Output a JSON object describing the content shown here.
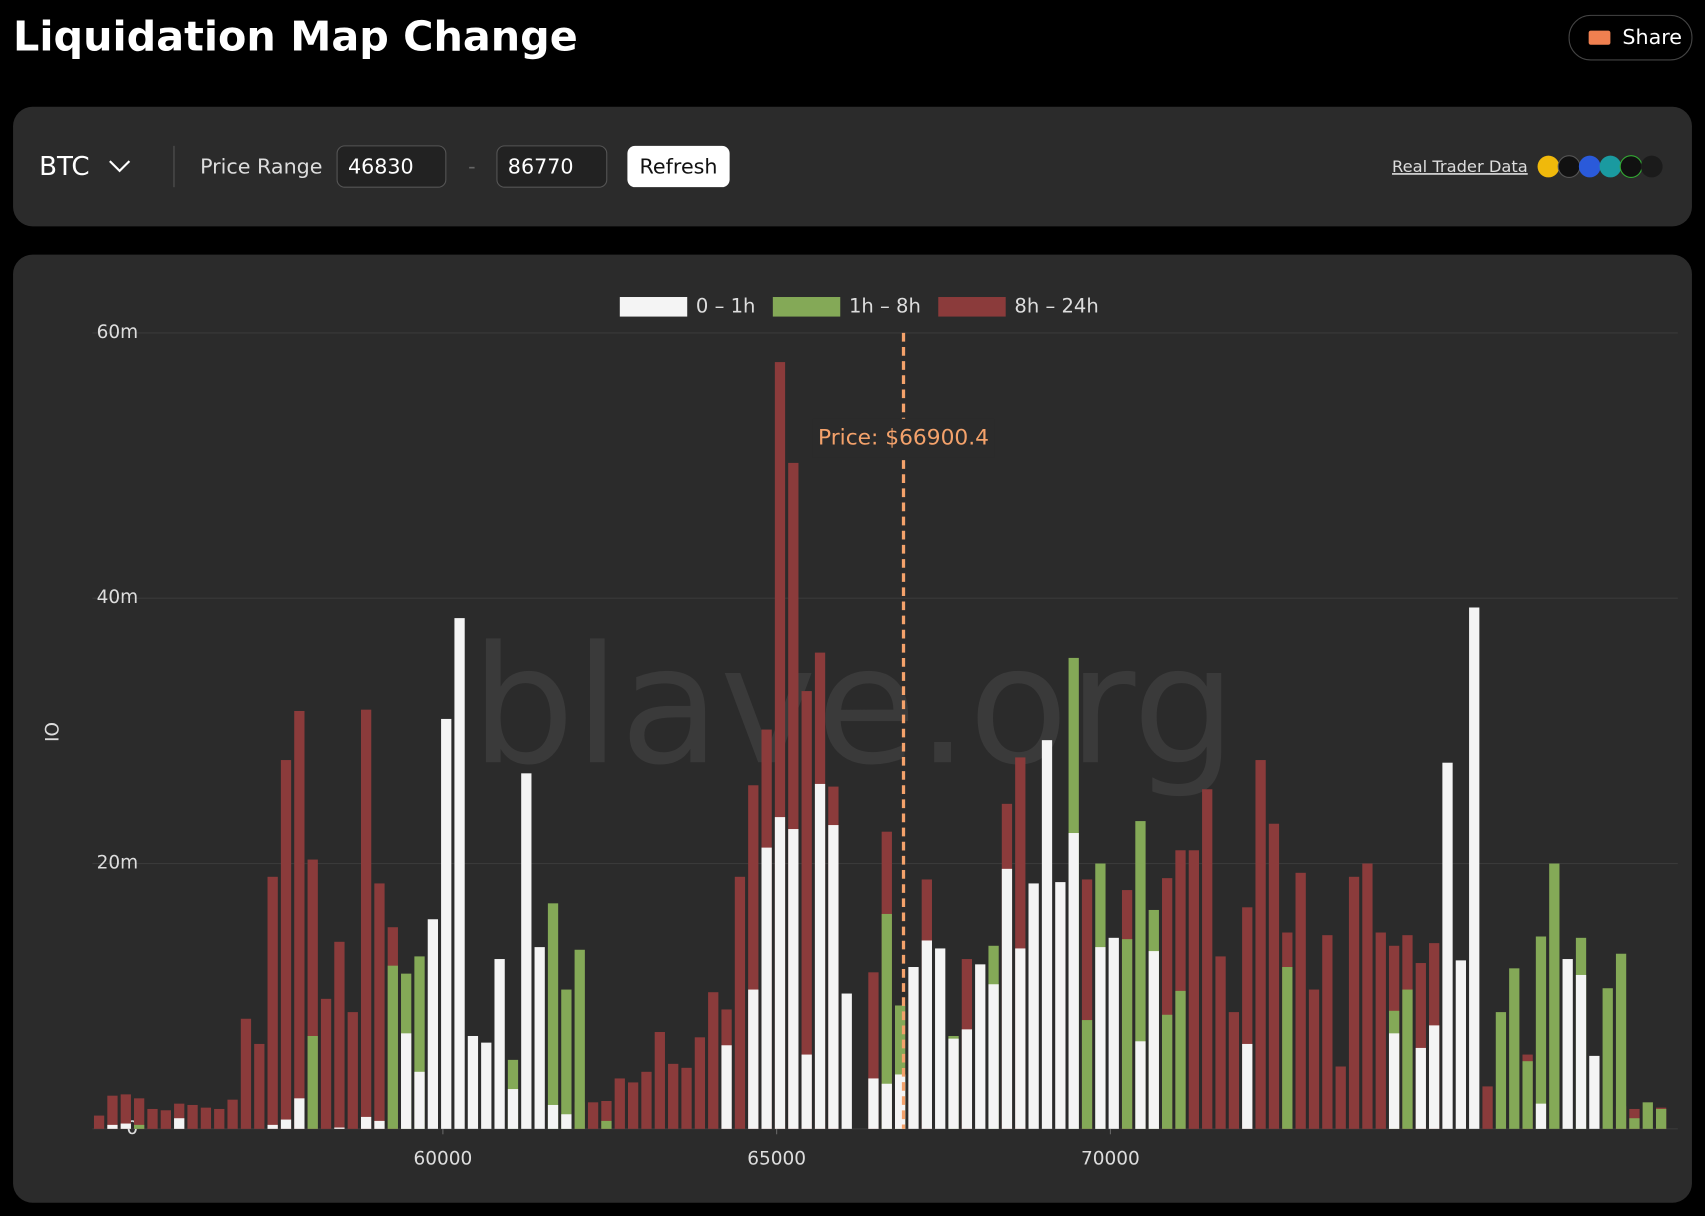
{
  "header": {
    "title": "Liquidation Map Change",
    "share": "Share"
  },
  "controls": {
    "symbol": "BTC",
    "price_range_label": "Price Range",
    "min": "46830",
    "range_sep": "-",
    "max": "86770",
    "refresh": "Refresh",
    "data_source": "Real Trader Data"
  },
  "chart_data": {
    "type": "bar",
    "watermark": "blave.org",
    "y_label": "OI",
    "x": [
      54850,
      55050,
      55250,
      55450,
      55650,
      55850,
      56050,
      56250,
      56450,
      56650,
      56850,
      57050,
      57250,
      57450,
      57650,
      57850,
      58050,
      58250,
      58450,
      58650,
      58850,
      59050,
      59250,
      59450,
      59650,
      59850,
      60050,
      60250,
      60450,
      60650,
      60850,
      61050,
      61250,
      61450,
      61650,
      61850,
      62050,
      62250,
      62450,
      62650,
      62850,
      63050,
      63250,
      63450,
      63650,
      63850,
      64050,
      64250,
      64450,
      64650,
      64850,
      65050,
      65250,
      65450,
      65650,
      65850,
      66050,
      66250,
      66450,
      66650,
      66850,
      67050,
      67250,
      67450,
      67650,
      67850,
      68050,
      68250,
      68450,
      68650,
      68850,
      69050,
      69250,
      69450,
      69650,
      69850,
      70050,
      70250,
      70450,
      70650,
      70850,
      71050,
      71250,
      71450,
      71650,
      71850,
      72050,
      72250,
      72450,
      72650,
      72850,
      73050,
      73250,
      73450,
      73650,
      73850,
      74050,
      74250,
      74450,
      74650,
      74850,
      75050,
      75250,
      75450,
      75650,
      75850,
      76050,
      76250,
      76450,
      76650,
      76850,
      77050,
      77250,
      77450,
      77650,
      77850,
      78050,
      78250
    ],
    "series": [
      {
        "name": "8h – 24h",
        "color": "#8b3b3b",
        "values": [
          1.0,
          2.5,
          2.6,
          2.3,
          1.5,
          1.4,
          1.9,
          1.8,
          1.6,
          1.5,
          2.2,
          8.3,
          6.4,
          19.0,
          27.8,
          31.5,
          20.3,
          9.8,
          14.1,
          8.8,
          31.6,
          18.5,
          15.2,
          0,
          0,
          0,
          0,
          0,
          0,
          0,
          0,
          0,
          0,
          0,
          0,
          0,
          2.0,
          2.0,
          2.1,
          3.8,
          3.5,
          4.3,
          7.3,
          4.9,
          4.6,
          6.9,
          10.3,
          9.0,
          19.0,
          25.9,
          30.1,
          57.8,
          50.2,
          33.0,
          35.9,
          25.8,
          0,
          0,
          11.8,
          22.4,
          0,
          0,
          18.8,
          0,
          0,
          12.8,
          0,
          0,
          24.5,
          28.0,
          0,
          0,
          0,
          0,
          18.8,
          0,
          0,
          18.0,
          0,
          0,
          18.9,
          21.0,
          21.0,
          25.6,
          13.0,
          8.8,
          16.7,
          27.8,
          23.0,
          14.8,
          19.3,
          10.5,
          14.6,
          4.7,
          19.0,
          20.0,
          14.8,
          13.8,
          14.6,
          12.5,
          14.0,
          0,
          0,
          0,
          3.2,
          0,
          0,
          5.6,
          0,
          0,
          0,
          0,
          0,
          0,
          1.7,
          1.5,
          0,
          1.6
        ]
      },
      {
        "name": "1h – 8h",
        "color": "#84a957",
        "values": [
          0,
          0,
          0,
          0.3,
          0,
          0,
          0,
          0,
          0,
          0,
          0,
          0,
          0,
          0,
          0,
          0,
          7.0,
          0,
          0,
          0,
          0,
          0,
          12.3,
          11.7,
          13.0,
          0,
          0,
          0,
          0,
          0,
          0,
          5.2,
          0,
          0,
          17.0,
          10.5,
          13.5,
          0,
          0.6,
          0,
          0,
          0,
          0,
          0,
          0,
          0,
          0,
          0,
          0,
          0,
          0,
          0,
          0,
          0,
          0,
          0,
          0,
          0,
          0,
          16.2,
          9.3,
          0,
          0,
          0,
          7.0,
          0,
          0,
          13.8,
          0,
          0,
          0,
          0,
          0,
          35.5,
          8.2,
          20.0,
          0,
          14.3,
          23.2,
          16.5,
          8.6,
          10.4,
          0,
          0,
          0,
          0,
          0,
          0,
          0,
          12.2,
          0,
          0,
          0,
          0,
          0,
          0,
          0,
          8.9,
          10.5,
          0,
          0,
          0,
          0,
          0,
          0,
          8.8,
          12.1,
          5.1,
          14.5,
          20.0,
          0,
          14.4,
          0,
          10.6,
          13.2,
          0.8,
          2.0,
          1.5
        ]
      },
      {
        "name": "0 – 1h",
        "color": "#f4f4f4",
        "values": [
          0,
          0.3,
          0.4,
          0,
          0,
          0,
          0.8,
          0,
          0,
          0,
          0,
          0,
          0,
          0.3,
          0.7,
          2.3,
          0,
          0,
          0.1,
          0,
          0.9,
          0.6,
          0,
          7.2,
          4.3,
          15.8,
          30.9,
          38.5,
          7.0,
          6.5,
          12.8,
          3.0,
          26.8,
          13.7,
          1.8,
          1.1,
          0,
          0,
          0,
          0,
          0,
          0,
          0,
          0,
          0,
          0,
          0,
          6.3,
          0,
          10.5,
          21.2,
          23.5,
          22.6,
          5.6,
          26.0,
          22.9,
          10.2,
          0,
          3.8,
          3.4,
          4.1,
          12.2,
          14.2,
          13.6,
          6.8,
          7.5,
          12.4,
          10.9,
          19.6,
          13.6,
          18.5,
          29.3,
          18.6,
          22.3,
          0,
          13.7,
          14.4,
          0,
          6.6,
          13.4,
          0,
          0,
          0,
          0,
          0,
          0,
          6.4,
          0,
          0,
          0,
          0,
          0,
          0,
          0,
          0,
          0,
          0,
          7.2,
          0,
          6.1,
          7.8,
          27.6,
          12.7,
          39.3,
          0,
          0,
          0,
          0,
          1.9,
          0,
          12.8,
          11.6,
          5.5,
          0,
          0,
          0,
          0,
          0
        ]
      }
    ],
    "xlim": [
      54750,
      78500
    ],
    "xticks": [
      60000,
      65000,
      70000
    ],
    "ylim": [
      0,
      60
    ],
    "yticks": [
      0,
      {
        "value": 20,
        "label": "20m"
      },
      {
        "value": 40,
        "label": "40m"
      },
      {
        "value": 60,
        "label": "60m"
      }
    ],
    "grid": true,
    "legend": "top",
    "annotation": {
      "value": 66900.4,
      "label": "Price: $66900.4",
      "color": "#f4a26b"
    }
  }
}
